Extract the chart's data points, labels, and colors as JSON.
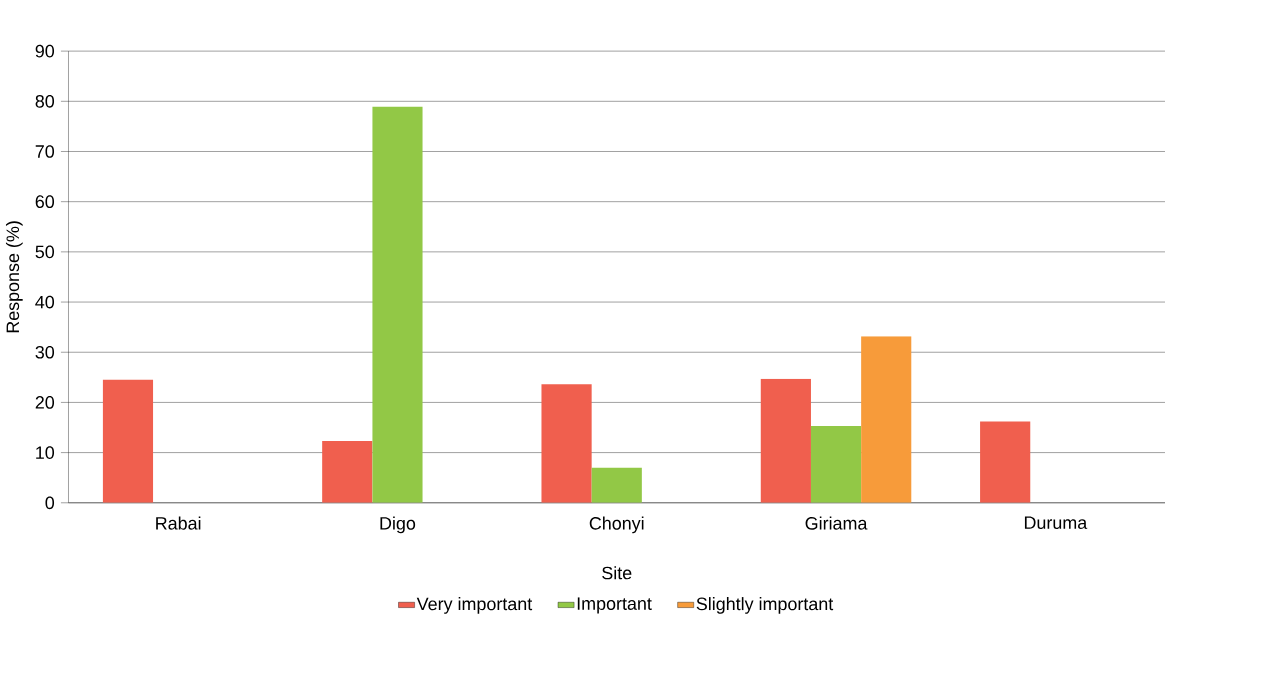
{
  "chart_data": {
    "type": "bar",
    "xlabel": "Site",
    "ylabel": "Response (%)",
    "categories": [
      "Rabai",
      "Digo",
      "Chonyi",
      "Giriama",
      "Duruma"
    ],
    "series": [
      {
        "name": "Very important",
        "color": "#f05f4e",
        "values": [
          24.5,
          12.3,
          23.6,
          24.7,
          16.2
        ]
      },
      {
        "name": "Important",
        "color": "#92c846",
        "values": [
          null,
          78.9,
          7.0,
          15.3,
          null
        ]
      },
      {
        "name": "Slightly important",
        "color": "#f79b3a",
        "values": [
          null,
          null,
          null,
          33.2,
          null
        ]
      }
    ],
    "ylim": [
      0,
      90
    ],
    "yticks": [
      0,
      10,
      20,
      30,
      40,
      50,
      60,
      70,
      80,
      90
    ],
    "grid": "y",
    "legend": "bottom"
  }
}
